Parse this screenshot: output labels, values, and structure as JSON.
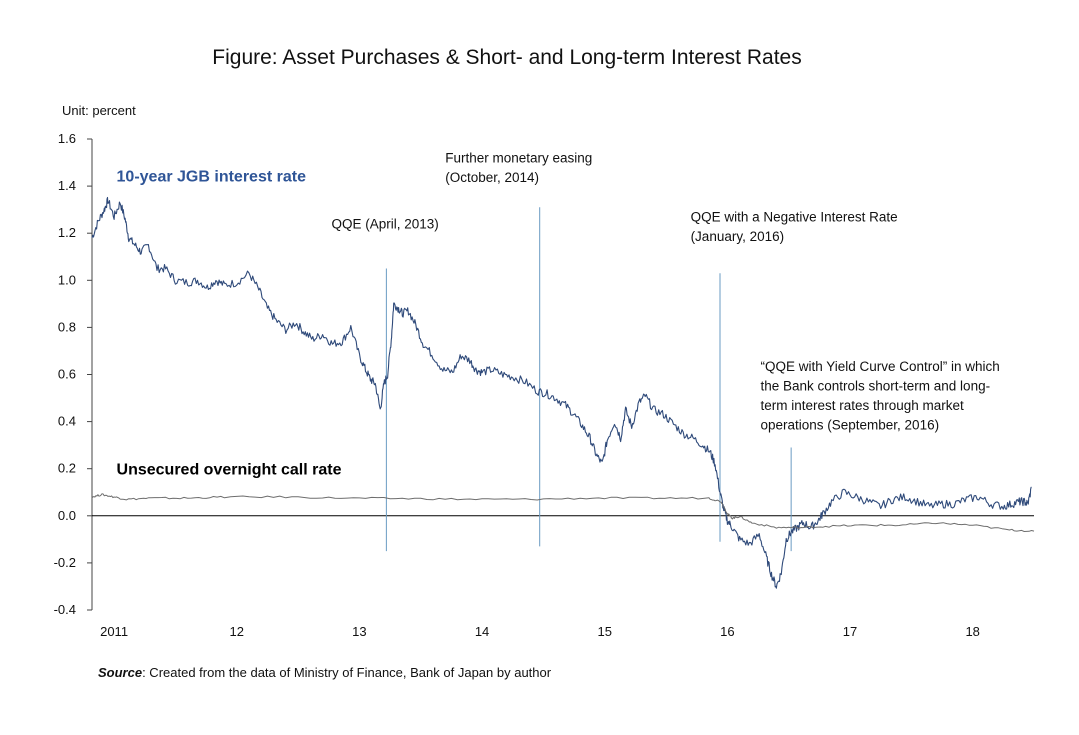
{
  "chart_data": {
    "type": "line",
    "title": "Figure: Asset Purchases & Short- and Long-term Interest Rates",
    "unit_label": "Unit: percent",
    "ylim": [
      -0.4,
      1.6
    ],
    "yticks": [
      "1.6",
      "1.4",
      "1.2",
      "1.0",
      "0.8",
      "0.6",
      "0.4",
      "0.2",
      "0.0",
      "-0.2",
      "-0.4"
    ],
    "ytick_values": [
      1.6,
      1.4,
      1.2,
      1.0,
      0.8,
      0.6,
      0.4,
      0.2,
      0.0,
      -0.2,
      -0.4
    ],
    "xlim": [
      2010.92,
      2018.6
    ],
    "xticks": [
      {
        "label": "2011",
        "x": 2011.1
      },
      {
        "label": "12",
        "x": 2012.1
      },
      {
        "label": "13",
        "x": 2013.1
      },
      {
        "label": "14",
        "x": 2014.1
      },
      {
        "label": "15",
        "x": 2015.1
      },
      {
        "label": "16",
        "x": 2016.1
      },
      {
        "label": "17",
        "x": 2017.1
      },
      {
        "label": "18",
        "x": 2018.1
      }
    ],
    "grid": false,
    "series": [
      {
        "name": "10-year JGB interest rate",
        "color": "#2f4a7a",
        "x": [
          2010.92,
          2010.97,
          2011.02,
          2011.05,
          2011.1,
          2011.15,
          2011.19,
          2011.22,
          2011.27,
          2011.32,
          2011.38,
          2011.45,
          2011.52,
          2011.6,
          2011.7,
          2011.78,
          2011.86,
          2011.93,
          2012.0,
          2012.1,
          2012.2,
          2012.28,
          2012.35,
          2012.42,
          2012.5,
          2012.58,
          2012.65,
          2012.72,
          2012.8,
          2012.88,
          2012.96,
          2013.03,
          2013.1,
          2013.15,
          2013.19,
          2013.23,
          2013.27,
          2013.3,
          2013.33,
          2013.36,
          2013.38,
          2013.42,
          2013.45,
          2013.5,
          2013.56,
          2013.62,
          2013.7,
          2013.78,
          2013.86,
          2013.93,
          2014.0,
          2014.05,
          2014.1,
          2014.18,
          2014.27,
          2014.35,
          2014.45,
          2014.55,
          2014.62,
          2014.7,
          2014.78,
          2014.85,
          2014.92,
          2014.98,
          2015.03,
          2015.08,
          2015.12,
          2015.18,
          2015.23,
          2015.27,
          2015.32,
          2015.38,
          2015.43,
          2015.5,
          2015.58,
          2015.66,
          2015.74,
          2015.82,
          2015.9,
          2015.96,
          2016.0,
          2016.04,
          2016.07,
          2016.1,
          2016.14,
          2016.2,
          2016.28,
          2016.36,
          2016.42,
          2016.46,
          2016.5,
          2016.54,
          2016.58,
          2016.62,
          2016.67,
          2016.72,
          2016.78,
          2016.84,
          2016.88,
          2016.95,
          2017.05,
          2017.15,
          2017.25,
          2017.35,
          2017.45,
          2017.55,
          2017.65,
          2017.75,
          2017.85,
          2017.95,
          2018.05,
          2018.15,
          2018.25,
          2018.35,
          2018.42,
          2018.48,
          2018.52,
          2018.55,
          2018.58
        ],
        "y": [
          1.18,
          1.25,
          1.3,
          1.34,
          1.27,
          1.33,
          1.26,
          1.18,
          1.15,
          1.12,
          1.15,
          1.05,
          1.05,
          1.0,
          0.99,
          1.0,
          0.97,
          1.0,
          0.98,
          0.99,
          1.03,
          0.96,
          0.88,
          0.83,
          0.79,
          0.82,
          0.78,
          0.75,
          0.77,
          0.73,
          0.74,
          0.8,
          0.68,
          0.62,
          0.58,
          0.56,
          0.45,
          0.56,
          0.6,
          0.75,
          0.9,
          0.88,
          0.86,
          0.87,
          0.81,
          0.73,
          0.68,
          0.62,
          0.61,
          0.68,
          0.66,
          0.62,
          0.61,
          0.62,
          0.6,
          0.59,
          0.57,
          0.53,
          0.52,
          0.5,
          0.47,
          0.43,
          0.38,
          0.33,
          0.26,
          0.22,
          0.32,
          0.4,
          0.33,
          0.45,
          0.38,
          0.48,
          0.51,
          0.45,
          0.43,
          0.39,
          0.35,
          0.33,
          0.3,
          0.27,
          0.22,
          0.1,
          0.03,
          -0.02,
          -0.05,
          -0.1,
          -0.12,
          -0.08,
          -0.18,
          -0.25,
          -0.3,
          -0.24,
          -0.1,
          -0.07,
          -0.05,
          -0.03,
          -0.05,
          -0.02,
          0.01,
          0.06,
          0.1,
          0.08,
          0.06,
          0.04,
          0.07,
          0.08,
          0.06,
          0.04,
          0.05,
          0.05,
          0.07,
          0.08,
          0.05,
          0.04,
          0.05,
          0.06,
          0.06,
          0.05,
          0.12
        ]
      },
      {
        "name": "Unsecured overnight call rate",
        "color": "#6d6d6d",
        "x": [
          2010.92,
          2011.0,
          2011.1,
          2011.2,
          2011.4,
          2011.7,
          2012.0,
          2012.5,
          2013.0,
          2013.5,
          2014.0,
          2014.5,
          2015.0,
          2015.5,
          2015.95,
          2016.05,
          2016.1,
          2016.14,
          2016.2,
          2016.3,
          2016.5,
          2016.7,
          2016.9,
          2017.2,
          2017.5,
          2017.8,
          2018.1,
          2018.4,
          2018.6
        ],
        "y": [
          0.08,
          0.09,
          0.08,
          0.07,
          0.075,
          0.075,
          0.08,
          0.08,
          0.075,
          0.073,
          0.07,
          0.07,
          0.075,
          0.075,
          0.075,
          0.06,
          0.01,
          -0.01,
          -0.003,
          -0.03,
          -0.05,
          -0.05,
          -0.045,
          -0.04,
          -0.04,
          -0.03,
          -0.04,
          -0.06,
          -0.065
        ]
      }
    ],
    "series_labels": [
      {
        "text": "10-year JGB interest rate",
        "x": 2011.12,
        "y": 1.42
      },
      {
        "text": "Unsecured overnight call rate",
        "x": 2011.12,
        "y": 0.175
      }
    ],
    "event_lines": [
      {
        "x": 2013.32,
        "y_top": 1.05,
        "y_bottom": -0.15
      },
      {
        "x": 2014.57,
        "y_top": 1.31,
        "y_bottom": -0.13
      },
      {
        "x": 2016.04,
        "y_top": 1.03,
        "y_bottom": -0.11
      },
      {
        "x": 2016.62,
        "y_top": 0.29,
        "y_bottom": -0.15
      }
    ],
    "annotations": [
      {
        "lines": [
          "QQE (April, 2013)"
        ],
        "x": 2013.31,
        "y": 1.22,
        "anchor": "middle"
      },
      {
        "lines": [
          "Further monetary easing",
          "(October, 2014)"
        ],
        "x": 2013.8,
        "y": 1.5,
        "anchor": "start"
      },
      {
        "lines": [
          "QQE with a Negative Interest Rate",
          "(January, 2016)"
        ],
        "x": 2015.8,
        "y": 1.25,
        "anchor": "start"
      },
      {
        "lines": [
          "“QQE with Yield Curve Control” in which",
          "the Bank controls short-term and long-",
          "term interest rates through market",
          "operations (September, 2016)"
        ],
        "x": 2016.37,
        "y": 0.615,
        "anchor": "start"
      }
    ]
  },
  "source": {
    "label": "Source",
    "text": ": Created from the data of Ministry of Finance, Bank of Japan by author"
  },
  "colors": {
    "jgb_label": "#2f5597",
    "axis": "#444444",
    "event_line": "#6a9bc3"
  }
}
